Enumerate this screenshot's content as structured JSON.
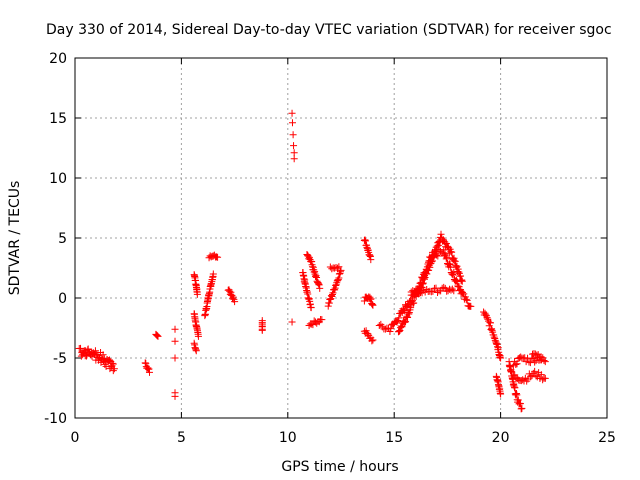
{
  "chart_data": {
    "type": "scatter",
    "title": "Day 330 of 2014, Sidereal Day-to-day VTEC variation (SDTVAR) for receiver sgoc",
    "xlabel": "GPS time / hours",
    "ylabel": "SDTVAR / TECUs",
    "xlim": [
      0,
      25
    ],
    "ylim": [
      -10,
      20
    ],
    "x_ticks": [
      "0",
      "5",
      "10",
      "15",
      "20",
      "25"
    ],
    "y_ticks": [
      "-10",
      "-5",
      "0",
      "5",
      "10",
      "15",
      "20"
    ],
    "grid": true,
    "marker": "plus",
    "series_color": "#ff0000",
    "segments": [
      {
        "x": [
          0.2,
          0.5,
          0.8,
          1.1,
          1.4,
          1.7,
          1.85
        ],
        "y": [
          -4.2,
          -4.4,
          -4.7,
          -5.0,
          -5.3,
          -5.7,
          -5.9
        ],
        "spread": 0.35
      },
      {
        "x": [
          0.3,
          0.6,
          0.9,
          1.2,
          1.5,
          1.8
        ],
        "y": [
          -4.8,
          -4.6,
          -4.5,
          -4.8,
          -5.2,
          -5.5
        ],
        "spread": 0.3
      },
      {
        "x": [
          3.3,
          3.4,
          3.5
        ],
        "y": [
          -5.3,
          -5.8,
          -6.2
        ],
        "spread": 0.2
      },
      {
        "x": [
          3.8,
          3.9
        ],
        "y": [
          -3.0,
          -3.2
        ],
        "spread": 0.1
      },
      {
        "x": [
          4.7,
          4.7,
          4.7,
          4.7,
          4.7
        ],
        "y": [
          -2.6,
          -3.6,
          -5.0,
          -7.9,
          -8.2
        ],
        "spread": 0
      },
      {
        "x": [
          5.6,
          5.7,
          5.8
        ],
        "y": [
          -1.3,
          -2.3,
          -3.2
        ],
        "spread": 0.1
      },
      {
        "x": [
          5.6,
          5.7
        ],
        "y": [
          -3.8,
          -4.4
        ],
        "spread": 0.1
      },
      {
        "x": [
          5.6,
          5.7,
          5.75
        ],
        "y": [
          2.0,
          1.0,
          0.3
        ],
        "spread": 0.1
      },
      {
        "x": [
          6.1,
          6.2,
          6.3,
          6.4,
          6.5
        ],
        "y": [
          -1.5,
          -0.6,
          0.4,
          1.2,
          2.0
        ],
        "spread": 0.15
      },
      {
        "x": [
          6.3,
          6.5,
          6.7
        ],
        "y": [
          3.4,
          3.6,
          3.4
        ],
        "spread": 0.1
      },
      {
        "x": [
          7.2,
          7.3,
          7.4,
          7.5
        ],
        "y": [
          0.8,
          0.5,
          0.0,
          -0.3
        ],
        "spread": 0.2
      },
      {
        "x": [
          8.8,
          8.8
        ],
        "y": [
          -1.9,
          -2.7
        ],
        "spread": 0.05
      },
      {
        "x": [
          10.2,
          10.22,
          10.25,
          10.27,
          10.3,
          10.3
        ],
        "y": [
          15.4,
          14.6,
          13.6,
          12.7,
          12.1,
          11.6
        ],
        "spread": 0
      },
      {
        "x": [
          10.2
        ],
        "y": [
          -2.0
        ],
        "spread": 0
      },
      {
        "x": [
          10.9,
          11.1,
          11.3,
          11.5
        ],
        "y": [
          3.8,
          3.0,
          1.8,
          0.8
        ],
        "spread": 0.2
      },
      {
        "x": [
          10.7,
          10.9,
          11.1
        ],
        "y": [
          2.1,
          0.5,
          -0.8
        ],
        "spread": 0.15
      },
      {
        "x": [
          11.0,
          11.3,
          11.6
        ],
        "y": [
          -2.2,
          -2.0,
          -1.8
        ],
        "spread": 0.15
      },
      {
        "x": [
          11.9,
          12.2,
          12.5
        ],
        "y": [
          -0.6,
          0.8,
          2.3
        ],
        "spread": 0.15
      },
      {
        "x": [
          12.0,
          12.4
        ],
        "y": [
          2.5,
          2.6
        ],
        "spread": 0.1
      },
      {
        "x": [
          13.6,
          13.7,
          13.9
        ],
        "y": [
          4.9,
          4.4,
          3.2
        ],
        "spread": 0.15
      },
      {
        "x": [
          13.6,
          13.8,
          14.0
        ],
        "y": [
          -0.2,
          0.2,
          -0.6
        ],
        "spread": 0.2
      },
      {
        "x": [
          13.6,
          13.8,
          14.0
        ],
        "y": [
          -2.7,
          -3.2,
          -3.5
        ],
        "spread": 0.2
      },
      {
        "x": [
          14.3,
          14.8,
          15.3,
          15.8,
          16.2
        ],
        "y": [
          -2.4,
          -2.6,
          -1.4,
          0.0,
          0.6
        ],
        "spread": 0.25
      },
      {
        "x": [
          15.2,
          15.6,
          16.0,
          16.4,
          16.8
        ],
        "y": [
          -2.8,
          -1.5,
          0.2,
          2.0,
          3.8
        ],
        "spread": 0.25
      },
      {
        "x": [
          16.2,
          16.7,
          17.2,
          17.7,
          18.2
        ],
        "y": [
          0.6,
          2.8,
          5.2,
          3.6,
          1.4
        ],
        "spread": 0.25
      },
      {
        "x": [
          16.8,
          17.3,
          17.8,
          18.3,
          18.6
        ],
        "y": [
          3.6,
          3.9,
          1.9,
          0.0,
          -0.7
        ],
        "spread": 0.25
      },
      {
        "x": [
          15.8,
          16.6,
          17.4,
          17.8
        ],
        "y": [
          0.5,
          0.6,
          0.7,
          0.6
        ],
        "spread": 0.2
      },
      {
        "x": [
          19.2,
          19.5,
          19.8,
          20.0
        ],
        "y": [
          -1.2,
          -2.2,
          -3.6,
          -5.0
        ],
        "spread": 0.25
      },
      {
        "x": [
          19.8,
          19.9,
          20.0
        ],
        "y": [
          -6.5,
          -7.2,
          -8.0
        ],
        "spread": 0.1
      },
      {
        "x": [
          20.4,
          20.6,
          20.8,
          21.0
        ],
        "y": [
          -5.3,
          -7.2,
          -8.5,
          -9.2
        ],
        "spread": 0.2
      },
      {
        "x": [
          20.6,
          21.0,
          21.4,
          21.8,
          22.1
        ],
        "y": [
          -5.5,
          -5.0,
          -5.2,
          -5.0,
          -5.3
        ],
        "spread": 0.25
      },
      {
        "x": [
          20.6,
          21.1,
          21.6,
          22.1
        ],
        "y": [
          -6.5,
          -6.8,
          -6.3,
          -6.7
        ],
        "spread": 0.25
      },
      {
        "x": [
          21.5,
          21.9
        ],
        "y": [
          -4.6,
          -4.9
        ],
        "spread": 0.1
      }
    ]
  }
}
